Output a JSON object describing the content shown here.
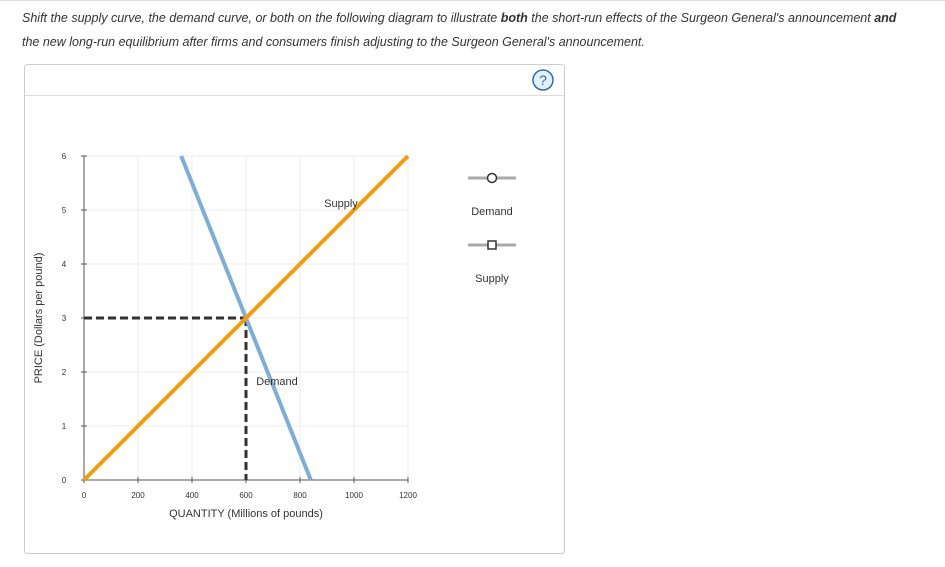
{
  "instructions": [
    "Shift the supply curve, the demand curve, or both on the following diagram to illustrate ",
    "both",
    " the short-run effects of the Surgeon General's announcement ",
    "and",
    " the new long-run equilibrium after firms and consumers finish adjusting to the Surgeon General's announcement."
  ],
  "help_icon": "?",
  "chart_data": {
    "type": "line",
    "x_label": "QUANTITY (Millions of pounds)",
    "y_label": "PRICE (Dollars per pound)",
    "xlim": [
      0,
      1200
    ],
    "xticks": [
      0,
      200,
      400,
      600,
      800,
      1000,
      1200
    ],
    "ylim": [
      0,
      6
    ],
    "yticks": [
      0,
      1,
      2,
      3,
      4,
      5,
      6
    ],
    "grid": true,
    "series": [
      {
        "name": "Demand",
        "color": "#7fadd6",
        "marker": "circle",
        "x": [
          360,
          840
        ],
        "values": [
          6,
          0
        ]
      },
      {
        "name": "Supply",
        "color": "#f39c12",
        "marker": "square",
        "x": [
          0,
          1200
        ],
        "values": [
          0,
          6
        ]
      }
    ],
    "equilibrium": {
      "x": 600,
      "y": 3
    }
  }
}
